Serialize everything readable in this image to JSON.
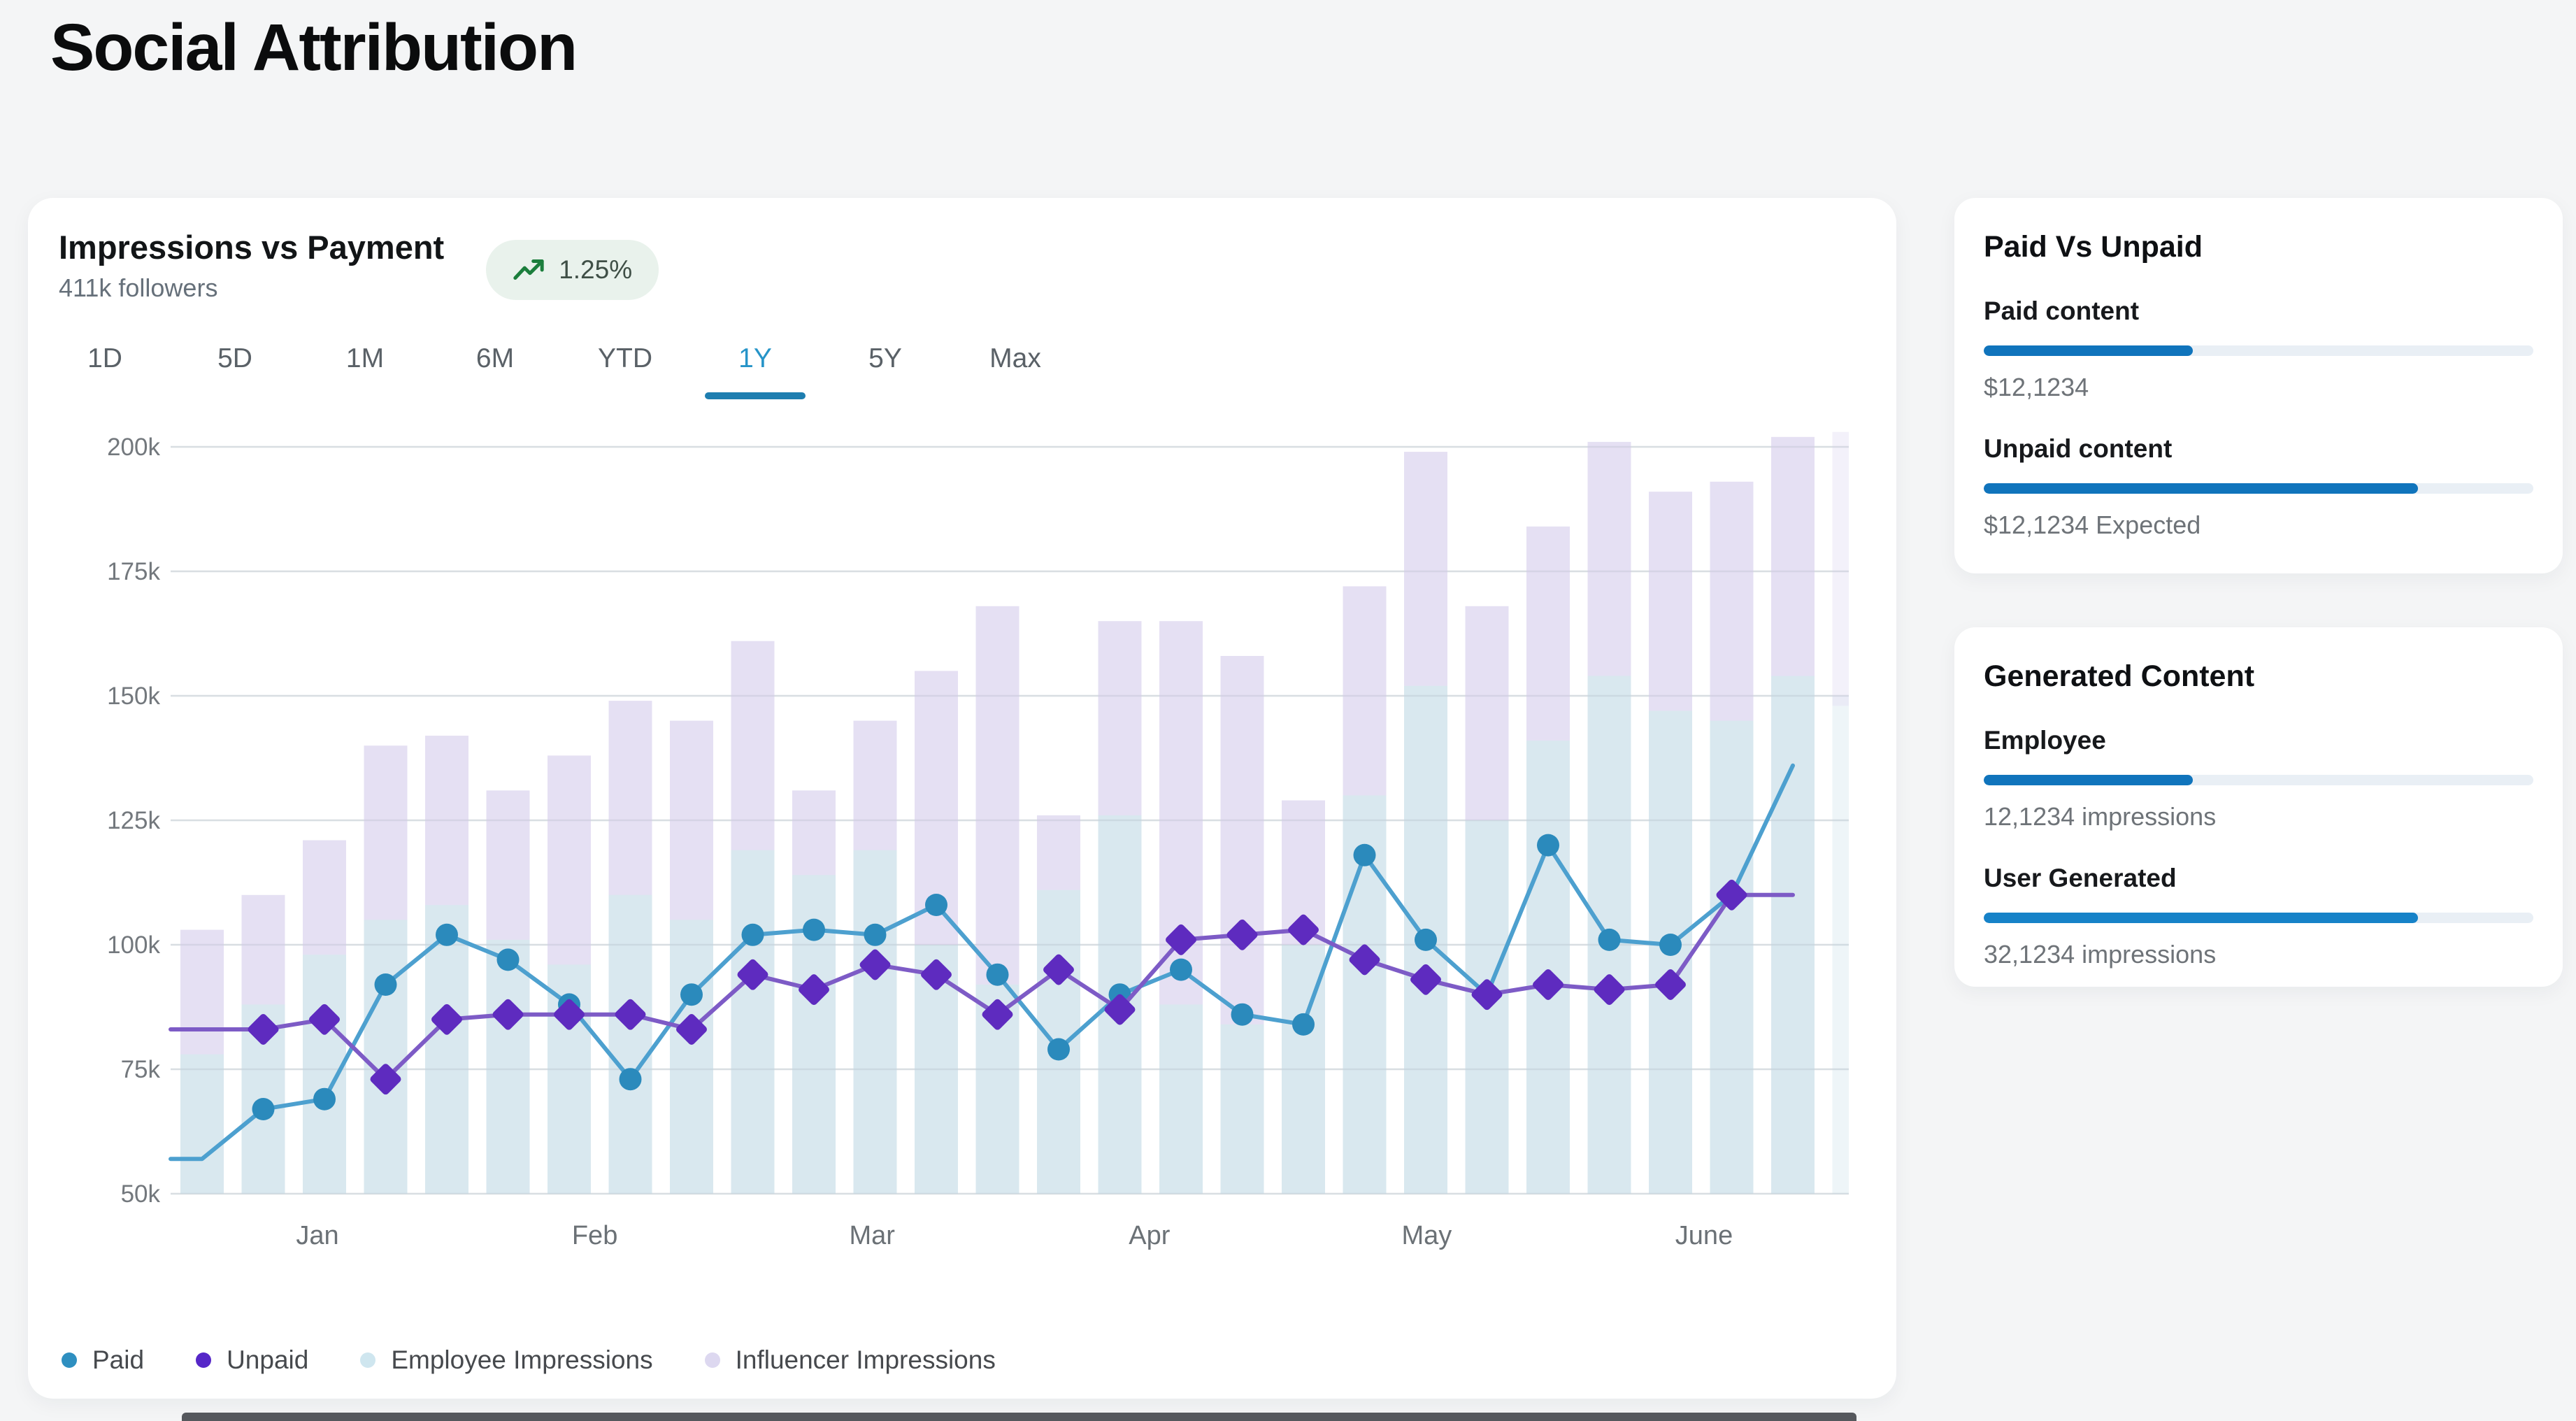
{
  "page": {
    "title": "Social Attribution"
  },
  "chart_card": {
    "title": "Impressions vs Payment",
    "subtitle": "411k followers",
    "trend_badge": {
      "value": "1.25%",
      "icon": "trending-up-icon",
      "bg": "#e9f2ec",
      "icon_color": "#1b7e3c"
    },
    "tabs": {
      "options": [
        "1D",
        "5D",
        "1M",
        "6M",
        "YTD",
        "1Y",
        "5Y",
        "Max"
      ],
      "active": "1Y",
      "active_color": "#2694c8"
    },
    "legend": [
      {
        "label": "Paid",
        "color": "#2e8fc0"
      },
      {
        "label": "Unpaid",
        "color": "#5627c8"
      },
      {
        "label": "Employee Impressions",
        "color": "#cfe6ef"
      },
      {
        "label": "Influencer Impressions",
        "color": "#ddd8f0"
      }
    ]
  },
  "chart_data": {
    "type": "combo-bar-line",
    "title": "Impressions vs Payment",
    "x_axis": {
      "months": [
        "Jan",
        "Feb",
        "Mar",
        "Apr",
        "May",
        "June"
      ]
    },
    "y_axis": {
      "ticks": [
        200,
        175,
        150,
        125,
        100,
        75,
        50
      ],
      "tick_labels": [
        "200k",
        "175k",
        "150k",
        "125k",
        "100k",
        "75k",
        "50k"
      ],
      "unit": "k impressions",
      "ylim": [
        50,
        205
      ]
    },
    "grid": true,
    "legend_position": "bottom",
    "last_column_faded": true,
    "series": [
      {
        "name": "Paid",
        "type": "line",
        "marker": "circle",
        "line_color": "#4da0cf",
        "marker_color": "#2b8abc",
        "values_k": [
          57,
          67,
          69,
          92,
          102,
          97,
          88,
          73,
          90,
          102,
          103,
          102,
          108,
          94,
          79,
          90,
          95,
          86,
          84,
          118,
          101,
          90,
          120,
          101,
          100,
          110,
          136
        ]
      },
      {
        "name": "Unpaid",
        "type": "line",
        "marker": "diamond",
        "line_color": "#7d5bc6",
        "marker_color": "#5e2bbf",
        "values_k": [
          83,
          83,
          85,
          73,
          85,
          86,
          86,
          86,
          83,
          94,
          91,
          96,
          94,
          86,
          95,
          87,
          101,
          102,
          103,
          97,
          93,
          90,
          92,
          91,
          92,
          110,
          110
        ]
      },
      {
        "name": "Employee Impressions",
        "type": "bar",
        "color": "#d9e8ef",
        "values_k": [
          80,
          90,
          100,
          108,
          111,
          104,
          99,
          113,
          108,
          122,
          117,
          122,
          103,
          95,
          114,
          129,
          91,
          86,
          103,
          133,
          155,
          128,
          144,
          157,
          150,
          148,
          157,
          150
        ]
      },
      {
        "name": "Influencer Impressions",
        "type": "floating-bar",
        "color": "#e5e0f3",
        "low_k": [
          78,
          88,
          98,
          105,
          108,
          101,
          96,
          110,
          105,
          119,
          114,
          119,
          100,
          92,
          111,
          126,
          88,
          84,
          100,
          130,
          152,
          125,
          141,
          154,
          147,
          145,
          154,
          148
        ],
        "high_k": [
          103,
          110,
          121,
          140,
          142,
          131,
          138,
          149,
          145,
          161,
          131,
          145,
          155,
          168,
          126,
          165,
          165,
          158,
          129,
          172,
          199,
          168,
          184,
          201,
          191,
          193,
          202,
          203
        ]
      }
    ]
  },
  "paid_vs_unpaid_card": {
    "title": "Paid Vs Unpaid",
    "items": [
      {
        "label": "Paid content",
        "value": "$12,1234",
        "progress_pct": 38
      },
      {
        "label": "Unpaid content",
        "value": "$12,1234 Expected",
        "progress_pct": 79
      }
    ]
  },
  "generated_content_card": {
    "title": "Generated Content",
    "items": [
      {
        "label": "Employee",
        "value": "12,1234 impressions",
        "progress_pct": 38
      },
      {
        "label": "User Generated",
        "value": "32,1234 impressions",
        "progress_pct": 79
      }
    ]
  },
  "colors": {
    "page_bg": "#f4f5f6",
    "card_bg": "#ffffff",
    "gridline": "#eaedf0",
    "axis_label": "#73787d",
    "progress_fill": "#1074bc",
    "progress_track": "#e9eff5",
    "badge_bg": "#e9f2ec",
    "badge_icon": "#1b7e3c",
    "tab_active": "#2694c8",
    "tab_underline": "#1e7eb0"
  }
}
